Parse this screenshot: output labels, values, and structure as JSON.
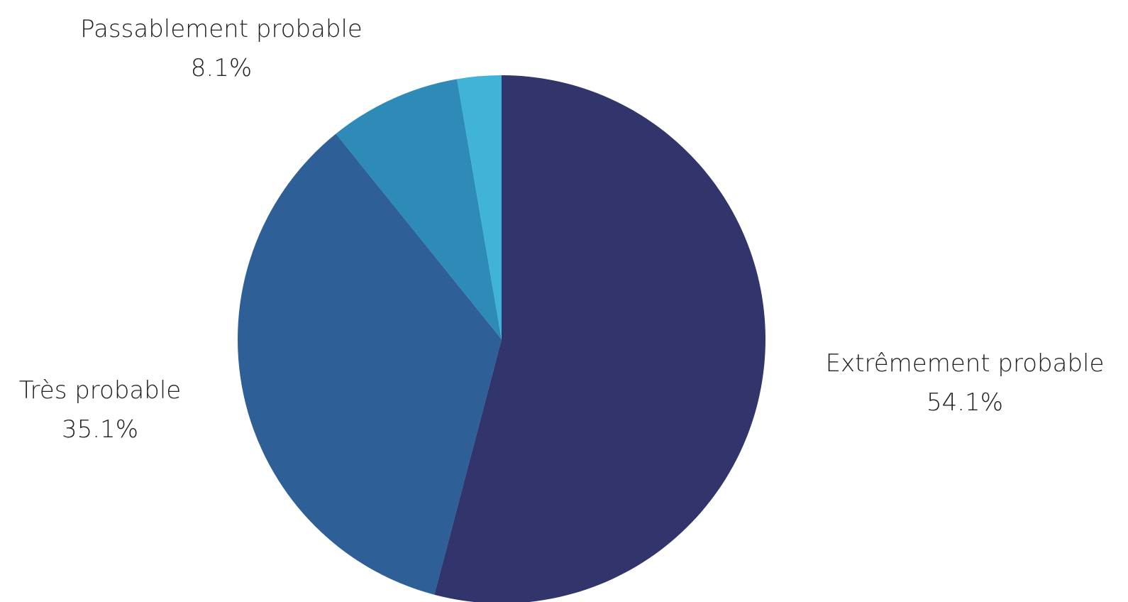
{
  "chart_data": {
    "type": "pie",
    "title": "",
    "start": "top",
    "direction": "clockwise",
    "slices": [
      {
        "label": "Extrêmement probable",
        "value": 54.1,
        "value_label": "54.1%",
        "color": "#31356b"
      },
      {
        "label": "Très probable",
        "value": 35.1,
        "value_label": "35.1%",
        "color": "#2e5f96"
      },
      {
        "label": "Passablement probable",
        "value": 8.1,
        "value_label": "8.1%",
        "color": "#2e8bb8"
      },
      {
        "label": "",
        "value": 2.7,
        "value_label": "",
        "color": "#40b4d6"
      }
    ]
  }
}
